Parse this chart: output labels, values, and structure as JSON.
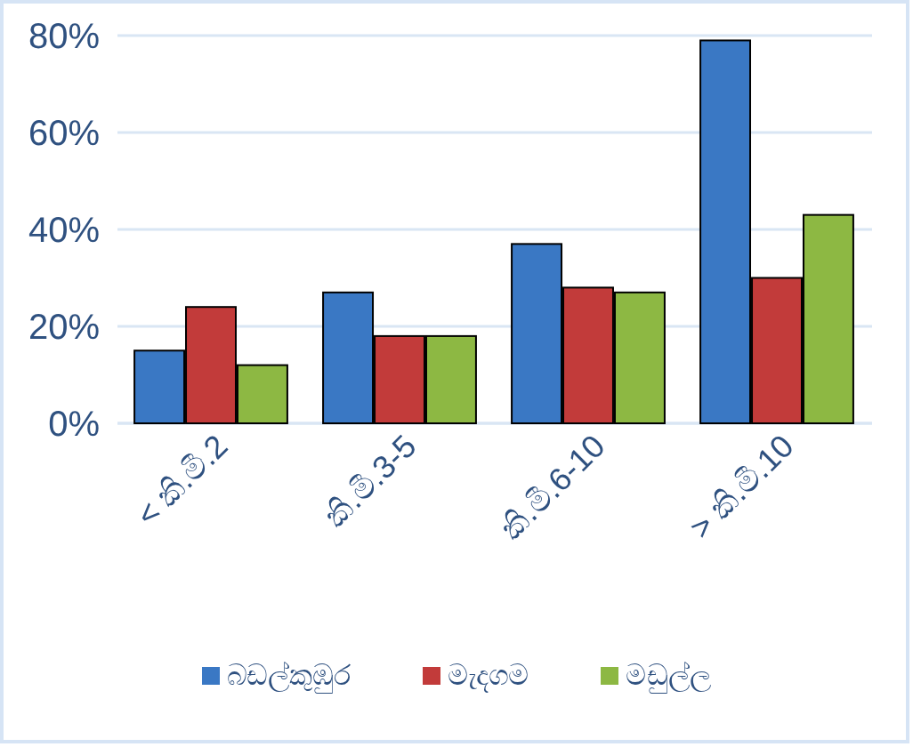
{
  "chart_data": {
    "type": "bar",
    "categories": [
      "< කි.මී.2",
      "කි.මී.3-5",
      "කි.මී.6-10",
      "> කි.මී.10"
    ],
    "series": [
      {
        "name": "බඩල්කුඹුර",
        "color": "#3a78c4",
        "values": [
          15,
          27,
          37,
          79
        ]
      },
      {
        "name": "මැදගම",
        "color": "#c23b3a",
        "values": [
          24,
          18,
          28,
          30
        ]
      },
      {
        "name": "මඩුල්ල",
        "color": "#8db843",
        "values": [
          12,
          18,
          27,
          43
        ]
      }
    ],
    "ylim": [
      0,
      80
    ],
    "yticks": [
      {
        "value": 0,
        "label": "0%"
      },
      {
        "value": 20,
        "label": "20%"
      },
      {
        "value": 40,
        "label": "40%"
      },
      {
        "value": 60,
        "label": "60%"
      },
      {
        "value": 80,
        "label": "80%"
      }
    ],
    "grid": "y",
    "legend": "bottom"
  }
}
